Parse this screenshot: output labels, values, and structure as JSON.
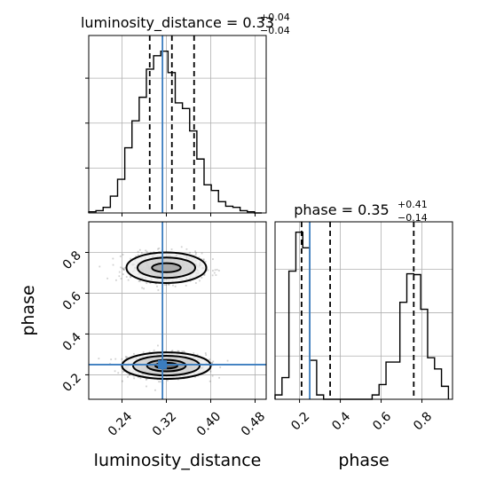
{
  "chart_data": [
    {
      "type": "histogram",
      "panel": "luminosity_distance marginal",
      "title_param": "luminosity_distance",
      "title_value": "0.33",
      "title_plus": "+0.04",
      "title_minus": "−0.04",
      "bin_edges": [
        0.18,
        0.193,
        0.206,
        0.219,
        0.232,
        0.245,
        0.258,
        0.271,
        0.284,
        0.297,
        0.31,
        0.323,
        0.336,
        0.349,
        0.362,
        0.375,
        0.388,
        0.401,
        0.414,
        0.427,
        0.44,
        0.453,
        0.466,
        0.479,
        0.492
      ],
      "counts": [
        1,
        2,
        5,
        15,
        30,
        58,
        82,
        103,
        128,
        140,
        144,
        125,
        98,
        93,
        73,
        48,
        25,
        20,
        10,
        6,
        5,
        2,
        1,
        0
      ],
      "xlim": [
        0.18,
        0.5
      ],
      "ylim": [
        0,
        158
      ],
      "quantiles": [
        0.29,
        0.33,
        0.37
      ],
      "truth": 0.313,
      "grid": true
    },
    {
      "type": "scatter_density_contour",
      "panel": "phase vs luminosity_distance",
      "xlabel": "luminosity_distance",
      "ylabel": "phase",
      "x_ticks": [
        "0.24",
        "0.32",
        "0.40",
        "0.48"
      ],
      "y_ticks": [
        "0.2",
        "0.4",
        "0.6",
        "0.8"
      ],
      "xlim": [
        0.18,
        0.5
      ],
      "ylim": [
        0.08,
        0.95
      ],
      "modes": [
        {
          "x_center": 0.32,
          "y_center": 0.245,
          "contour_levels_half_widths_x": [
            0.08,
            0.06,
            0.035,
            0.02
          ],
          "contour_levels_half_widths_y": [
            0.065,
            0.048,
            0.028,
            0.014
          ]
        },
        {
          "x_center": 0.32,
          "y_center": 0.725,
          "contour_levels_half_widths_x": [
            0.072,
            0.052,
            0.026
          ],
          "contour_levels_half_widths_y": [
            0.075,
            0.05,
            0.022
          ]
        }
      ],
      "truth": {
        "x": 0.313,
        "y": 0.25
      },
      "grid": true
    },
    {
      "type": "histogram",
      "panel": "phase marginal",
      "xlabel": "phase",
      "x_ticks": [
        "0.2",
        "0.4",
        "0.6",
        "0.8"
      ],
      "title_param": "phase",
      "title_value": "0.35",
      "title_plus": "+0.41",
      "title_minus": "−0.14",
      "bin_edges": [
        0.08,
        0.114,
        0.148,
        0.182,
        0.216,
        0.25,
        0.284,
        0.318,
        0.352,
        0.386,
        0.42,
        0.454,
        0.488,
        0.522,
        0.556,
        0.59,
        0.624,
        0.658,
        0.692,
        0.726,
        0.76,
        0.794,
        0.828,
        0.862,
        0.896,
        0.93
      ],
      "counts": [
        5,
        25,
        148,
        193,
        175,
        45,
        5,
        0,
        0,
        0,
        0,
        0,
        0,
        0,
        5,
        17,
        43,
        43,
        112,
        145,
        144,
        104,
        48,
        35,
        15
      ],
      "xlim": [
        0.08,
        0.95
      ],
      "ylim": [
        0,
        205
      ],
      "quantiles": [
        0.21,
        0.35,
        0.76
      ],
      "truth": 0.25,
      "grid": true
    }
  ]
}
